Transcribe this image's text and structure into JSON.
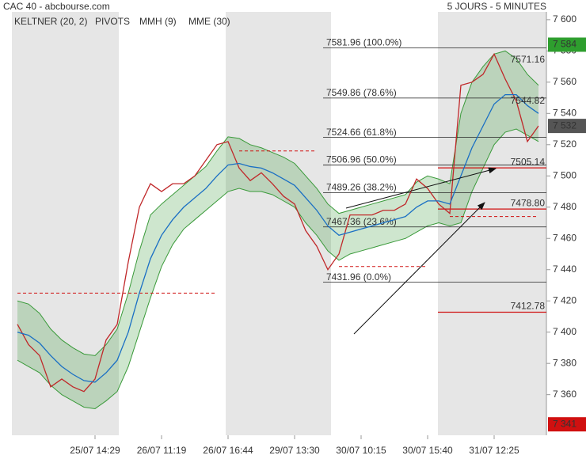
{
  "chart_data": {
    "type": "line",
    "title": "CAC 40 - abcbourse.com",
    "subtitle": "5 JOURS - 5 MINUTES",
    "categories": [
      null,
      null,
      null,
      null,
      null,
      null,
      null,
      "25/07 14:29",
      null,
      null,
      null,
      null,
      null,
      "26/07 11:19",
      null,
      null,
      null,
      null,
      null,
      "26/07 16:44",
      null,
      null,
      null,
      null,
      null,
      "29/07 13:30",
      null,
      null,
      null,
      null,
      null,
      "30/07 10:15",
      null,
      null,
      null,
      null,
      null,
      "30/07 15:40",
      null,
      null,
      null,
      null,
      null,
      "31/07 12:25",
      null,
      null,
      null,
      null
    ],
    "ylim": [
      7334,
      7605
    ],
    "yticks": [
      {
        "value": 7360,
        "label": "7 360"
      },
      {
        "value": 7380,
        "label": "7 380"
      },
      {
        "value": 7400,
        "label": "7 400"
      },
      {
        "value": 7420,
        "label": "7 420"
      },
      {
        "value": 7440,
        "label": "7 440"
      },
      {
        "value": 7460,
        "label": "7 460"
      },
      {
        "value": 7480,
        "label": "7 480"
      },
      {
        "value": 7500,
        "label": "7 500"
      },
      {
        "value": 7520,
        "label": "7 520"
      },
      {
        "value": 7540,
        "label": "7 540"
      },
      {
        "value": 7560,
        "label": "7 560"
      },
      {
        "value": 7580,
        "label": "7 580"
      },
      {
        "value": 7600,
        "label": "7 600"
      }
    ],
    "keltner": {
      "name": "KELTNER (20, 2)",
      "color": "#3a9a3a",
      "upper": [
        7420,
        7418,
        7412,
        7402,
        7395,
        7390,
        7386,
        7385,
        7392,
        7402,
        7425,
        7452,
        7475,
        7482,
        7488,
        7494,
        7500,
        7506,
        7516,
        7525,
        7524,
        7520,
        7518,
        7515,
        7512,
        7508,
        7500,
        7492,
        7482,
        7476,
        7478,
        7480,
        7482,
        7484,
        7486,
        7488,
        7496,
        7500,
        7498,
        7495,
        7540,
        7560,
        7570,
        7578,
        7580,
        7575,
        7565,
        7558
      ],
      "lower": [
        7382,
        7378,
        7374,
        7366,
        7360,
        7356,
        7352,
        7351,
        7356,
        7362,
        7378,
        7400,
        7422,
        7442,
        7456,
        7466,
        7472,
        7478,
        7484,
        7490,
        7492,
        7490,
        7490,
        7488,
        7484,
        7480,
        7470,
        7462,
        7452,
        7446,
        7450,
        7452,
        7454,
        7456,
        7458,
        7460,
        7464,
        7468,
        7470,
        7468,
        7470,
        7490,
        7505,
        7520,
        7528,
        7530,
        7526,
        7522
      ]
    },
    "series": [
      {
        "name": "PIVOTS",
        "color": "#d01010",
        "dashed": true,
        "values": [
          7425,
          7425,
          7425,
          7425,
          7425,
          7425,
          7425,
          7425,
          7425,
          7425,
          7425,
          7425,
          7425,
          7425,
          7425,
          7425,
          7425,
          7425,
          7425,
          null,
          7516,
          7516,
          7516,
          7516,
          7516,
          7516,
          7516,
          7516,
          null,
          7442,
          7442,
          7442,
          7442,
          7442,
          7442,
          7442,
          7442,
          7442,
          null,
          7474,
          7474,
          7474,
          7474,
          7474,
          7474,
          7474,
          7474,
          7474
        ]
      },
      {
        "name": "MMH (9)",
        "color": "#c0282a",
        "values": [
          7405,
          7392,
          7385,
          7365,
          7370,
          7365,
          7362,
          7370,
          7395,
          7405,
          7445,
          7480,
          7495,
          7490,
          7495,
          7495,
          7500,
          7510,
          7520,
          7522,
          7505,
          7497,
          7502,
          7495,
          7487,
          7482,
          7465,
          7455,
          7440,
          7450,
          7475,
          7475,
          7475,
          7478,
          7478,
          7482,
          7498,
          7492,
          7482,
          7476,
          7558,
          7560,
          7565,
          7578,
          7562,
          7548,
          7522,
          7532
        ]
      },
      {
        "name": "MME (30)",
        "color": "#1a6fc4",
        "values": [
          7400,
          7398,
          7393,
          7385,
          7378,
          7373,
          7369,
          7368,
          7374,
          7382,
          7400,
          7425,
          7447,
          7462,
          7472,
          7480,
          7486,
          7492,
          7500,
          7507,
          7508,
          7506,
          7505,
          7502,
          7498,
          7494,
          7486,
          7478,
          7468,
          7462,
          7464,
          7466,
          7468,
          7470,
          7472,
          7474,
          7480,
          7484,
          7484,
          7482,
          7500,
          7518,
          7532,
          7546,
          7552,
          7552,
          7545,
          7540
        ]
      }
    ],
    "fib_levels": [
      {
        "value": 7581.96,
        "label": "7581.96  (100.0%)"
      },
      {
        "value": 7549.86,
        "label": "7549.86  (78.6%)"
      },
      {
        "value": 7524.66,
        "label": "7524.66  (61.8%)"
      },
      {
        "value": 7506.96,
        "label": "7506.96  (50.0%)"
      },
      {
        "value": 7489.26,
        "label": "7489.26  (38.2%)"
      },
      {
        "value": 7467.36,
        "label": "7467.36  (23.6%)"
      },
      {
        "value": 7431.96,
        "label": "7431.96  (0.0%)"
      }
    ],
    "pivot_levels": [
      {
        "value": 7505.14,
        "label": "7505.14"
      },
      {
        "value": 7478.8,
        "label": "7478.80"
      },
      {
        "value": 7412.78,
        "label": "7412.78"
      }
    ],
    "annotations": [
      {
        "value": 7571.16,
        "label": "7571.16",
        "color": "#3a9a3a"
      },
      {
        "value": 7544.82,
        "label": "7544.82",
        "color": "#333333"
      }
    ],
    "price_boxes": [
      {
        "value": 7584,
        "label": "7 584",
        "color": "#2e9e2e"
      },
      {
        "value": 7532,
        "label": "7 532",
        "color": "#555555"
      },
      {
        "value": 7341,
        "label": "7 341",
        "color": "#d01010"
      }
    ]
  }
}
